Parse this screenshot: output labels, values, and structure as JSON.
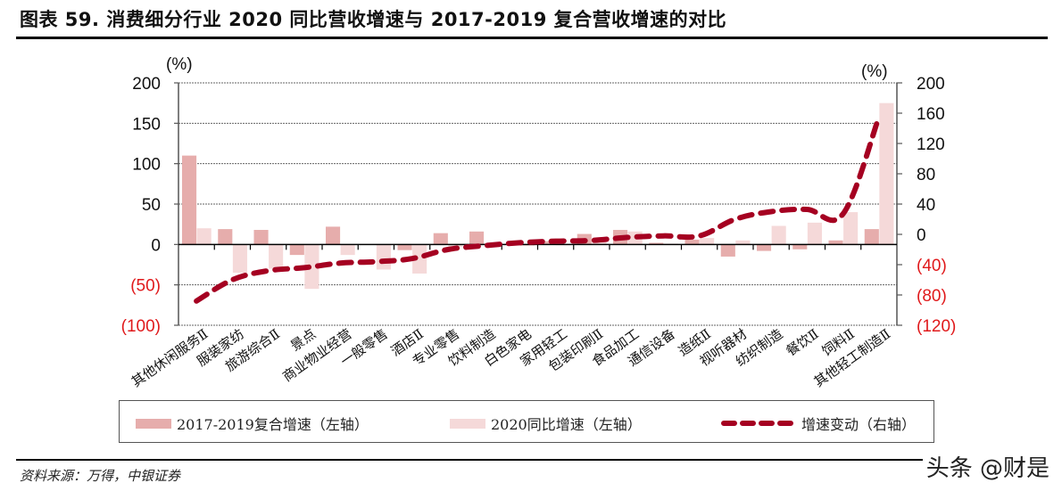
{
  "title": "图表 59. 消费细分行业 2020 同比营收增速与 2017-2019 复合营收增速的对比",
  "source": "资料来源：万得，中银证券",
  "watermark": "头条 @财是",
  "colors": {
    "series_cagr": "#e6adac",
    "series_2020": "#f5d9d9",
    "series_change": "#a50021",
    "negative_tick": "#e0191b",
    "axis": "#555555"
  },
  "legend": {
    "item1": "2017-2019复合增速（左轴）",
    "item2": "2020同比增速（左轴）",
    "item3": "增速变动（右轴）"
  },
  "chart_data": {
    "type": "bar+line",
    "title": "消费细分行业 2020 同比营收增速与 2017-2019 复合营收增速的对比",
    "left_axis": {
      "unit_label": "(%)",
      "ylim": [
        -100,
        200
      ],
      "ticks": [
        "200",
        "150",
        "100",
        "50",
        "0",
        "(50)",
        "(100)"
      ]
    },
    "right_axis": {
      "unit_label": "(%)",
      "ylim": [
        -120,
        200
      ],
      "ticks": [
        "200",
        "160",
        "120",
        "80",
        "40",
        "0",
        "(40)",
        "(80)",
        "(120)"
      ]
    },
    "grid": true,
    "legend_position": "bottom",
    "categories": [
      "其他休闲服务Ⅱ",
      "服装家纺",
      "旅游综合Ⅱ",
      "景点",
      "商业物业经营",
      "一般零售",
      "酒店Ⅱ",
      "专业零售",
      "饮料制造",
      "白色家电",
      "家用轻工",
      "包装印刷Ⅱ",
      "食品加工",
      "通信设备",
      "造纸Ⅱ",
      "视听器材",
      "纺织制造",
      "餐饮Ⅱ",
      "饲料Ⅱ",
      "其他轻工制造Ⅱ"
    ],
    "series": [
      {
        "name": "2017-2019复合增速（左轴）",
        "type": "bar",
        "axis": "left",
        "values": [
          110,
          19,
          18,
          -13,
          22,
          0,
          -7,
          14,
          16,
          0,
          4,
          13,
          18,
          2,
          6,
          -15,
          -8,
          -6,
          5,
          19
        ]
      },
      {
        "name": "2020同比增速（左轴）",
        "type": "bar",
        "axis": "left",
        "values": [
          20,
          -35,
          -30,
          -55,
          -13,
          -31,
          -36,
          -3,
          2,
          -2,
          -1,
          6,
          16,
          1,
          8,
          5,
          23,
          27,
          40,
          175
        ]
      },
      {
        "name": "增速变动（右轴）",
        "type": "line-dashed",
        "axis": "right",
        "values": [
          -88,
          -60,
          -48,
          -44,
          -38,
          -36,
          -32,
          -20,
          -15,
          -11,
          -9,
          -8,
          -4,
          -2,
          -2,
          20,
          30,
          33,
          27,
          155
        ]
      }
    ]
  }
}
